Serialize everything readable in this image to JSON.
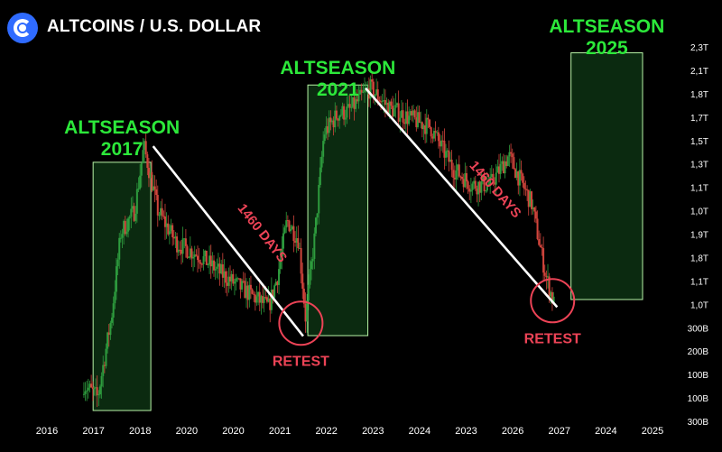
{
  "header": {
    "title": "ALTCOINS / U.S. DOLLAR",
    "logo_icon": "coin-logo-icon"
  },
  "colors": {
    "background": "#000000",
    "season_fill": "#0b2a10",
    "season_border": "#b9f5a7",
    "season_label": "#2ce83a",
    "retest": "#ec4356",
    "trend_line": "#ffffff",
    "up_candle": "#2e9c3e",
    "down_candle": "#d2453c"
  },
  "annotations": {
    "seasons": [
      {
        "line1": "ALTSEASON",
        "line2": "2017"
      },
      {
        "line1": "ALTSEASON",
        "line2": "2021"
      },
      {
        "line1": "ALTSEASON",
        "line2": "2025"
      }
    ],
    "cycle_labels": [
      "1460 DAYS",
      "1460 DAYS"
    ],
    "retests": [
      "RETEST",
      "RETEST"
    ]
  },
  "chart_data": {
    "type": "line",
    "title": "ALTCOINS / U.S. DOLLAR",
    "xlabel": "",
    "ylabel": "",
    "x_ticks": [
      "2016",
      "2017",
      "2018",
      "2020",
      "2020",
      "2021",
      "2022",
      "2023",
      "2024",
      "2023",
      "2026",
      "2027",
      "2024",
      "2025"
    ],
    "y_ticks": [
      "2,3T",
      "2,1T",
      "1,8T",
      "1,7T",
      "1,5T",
      "1,3T",
      "1,1T",
      "1,0T",
      "1,9T",
      "1,8T",
      "1,1T",
      "1,0T",
      "300B",
      "200B",
      "100B",
      "100B",
      "300B"
    ],
    "y_axis_position": "right",
    "grid": false,
    "legend": "none",
    "series": [
      {
        "x": [
          "2016.8",
          "2017.1",
          "2017.4",
          "2017.6",
          "2017.9",
          "2018.1",
          "2018.4",
          "2018.8",
          "2019.3",
          "2019.9",
          "2020.3",
          "2020.8",
          "2021.0",
          "2021.2",
          "2021.45",
          "2021.6",
          "2021.8",
          "2022.0",
          "2022.3",
          "2022.55",
          "2022.8",
          "2023.0",
          "2023.4",
          "2023.8",
          "2024.3",
          "2024.8",
          "2025.2",
          "2025.6",
          "2026.0",
          "2026.5",
          "2026.8",
          "2027.0"
        ],
        "y": [
          14,
          10,
          35,
          61,
          68,
          88,
          68,
          58,
          54,
          47,
          43,
          38,
          48,
          65,
          59,
          35,
          60,
          92,
          98,
          99,
          103,
          106,
          100,
          97,
          94,
          81,
          76,
          76,
          85,
          70,
          48,
          38
        ]
      }
    ],
    "shaded_regions": [
      {
        "label": "ALTSEASON 2017",
        "x_start": "2017.0",
        "x_end": "2018.25",
        "y_top": 83
      },
      {
        "label": "ALTSEASON 2021",
        "x_start": "2021.65",
        "x_end": "2022.95",
        "y_top": 107
      },
      {
        "label": "ALTSEASON 2025",
        "x_start": "2027.35",
        "x_end": "2028.9",
        "y_top": 117
      }
    ],
    "trend_lines": [
      {
        "label": "1460 DAYS",
        "from": [
          "2018.3",
          88
        ],
        "to": [
          "2021.55",
          29
        ]
      },
      {
        "label": "1460 DAYS",
        "from": [
          "2022.9",
          106
        ],
        "to": [
          "2027.05",
          38
        ]
      }
    ],
    "retest_markers": [
      {
        "label": "RETEST",
        "x": "2021.5",
        "y": 33
      },
      {
        "label": "RETEST",
        "x": "2026.95",
        "y": 40
      }
    ]
  }
}
